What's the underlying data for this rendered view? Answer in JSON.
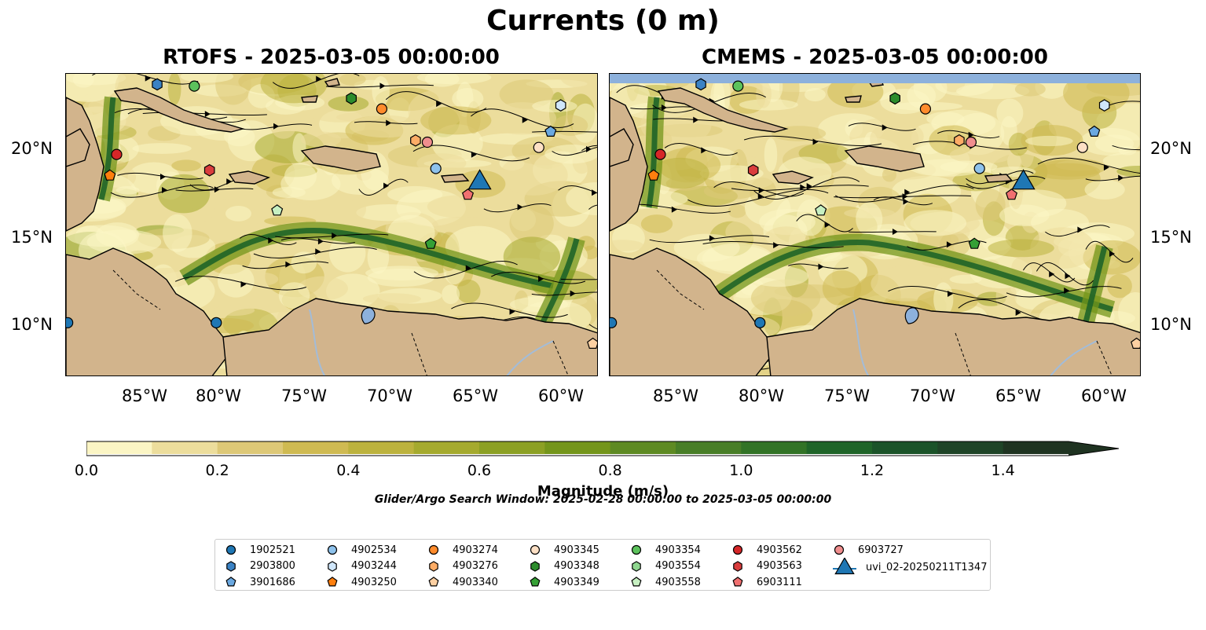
{
  "figure": {
    "title": "Currents (0 m)",
    "search_window": "Glider/Argo Search Window: 2025-02-28 00:00:00 to 2025-03-05 00:00:00"
  },
  "panels": [
    {
      "title": "RTOFS - 2025-03-05 00:00:00",
      "model": "RTOFS"
    },
    {
      "title": "CMEMS - 2025-03-05 00:00:00",
      "model": "CMEMS"
    }
  ],
  "axes": {
    "lon_ticks": [
      "85°W",
      "80°W",
      "75°W",
      "70°W",
      "65°W",
      "60°W"
    ],
    "lat_ticks": [
      "20°N",
      "15°N",
      "10°N"
    ],
    "lon_range": [
      -89.5,
      -58.0
    ],
    "lat_range": [
      7.0,
      24.3
    ]
  },
  "colorbar": {
    "label": "Magnitude (m/s)",
    "ticks": [
      "0.0",
      "0.2",
      "0.4",
      "0.6",
      "0.8",
      "1.0",
      "1.2",
      "1.4"
    ],
    "range": [
      0.0,
      1.5
    ],
    "extend": "max",
    "colors": [
      "#fbf5c4",
      "#ecdd9c",
      "#ddc877",
      "#cfba52",
      "#bcb23e",
      "#a5aa2e",
      "#8ca024",
      "#74951b",
      "#5e8a23",
      "#487e27",
      "#327326",
      "#1f6428",
      "#1b5329",
      "#1f4427",
      "#1f3321"
    ]
  },
  "colors": {
    "land": "#d2b48c",
    "lakes": "#8db1dc",
    "rivers": "#a3bcd8",
    "nodata_band": "#8db1dc"
  },
  "legend": {
    "columns": [
      [
        {
          "label": "1902521",
          "marker": "circle",
          "color": "#1f77b4"
        },
        {
          "label": "2903800",
          "marker": "hexagon",
          "color": "#3b82c4"
        },
        {
          "label": "3901686",
          "marker": "pentagon",
          "color": "#6aa8e0"
        }
      ],
      [
        {
          "label": "4902534",
          "marker": "circle",
          "color": "#8ec2ec"
        },
        {
          "label": "4903244",
          "marker": "hexagon",
          "color": "#cfe6fa"
        },
        {
          "label": "4903250",
          "marker": "pentagon",
          "color": "#ff7f0e"
        }
      ],
      [
        {
          "label": "4903274",
          "marker": "circle",
          "color": "#ff8b2c"
        },
        {
          "label": "4903276",
          "marker": "hexagon",
          "color": "#fdac66"
        },
        {
          "label": "4903340",
          "marker": "pentagon",
          "color": "#fdd0a2"
        }
      ],
      [
        {
          "label": "4903345",
          "marker": "circle",
          "color": "#fde0c5"
        },
        {
          "label": "4903348",
          "marker": "hexagon",
          "color": "#2c8c2c"
        },
        {
          "label": "4903349",
          "marker": "pentagon",
          "color": "#35a035"
        }
      ],
      [
        {
          "label": "4903354",
          "marker": "circle",
          "color": "#5cc25c"
        },
        {
          "label": "4903554",
          "marker": "hexagon",
          "color": "#8fd68f"
        },
        {
          "label": "4903558",
          "marker": "pentagon",
          "color": "#c7f0c2"
        }
      ],
      [
        {
          "label": "4903562",
          "marker": "circle",
          "color": "#d62728"
        },
        {
          "label": "4903563",
          "marker": "hexagon",
          "color": "#d93d3d"
        },
        {
          "label": "6903111",
          "marker": "pentagon",
          "color": "#f07070"
        }
      ],
      [
        {
          "label": "6903727",
          "marker": "circle",
          "color": "#f08e8e"
        },
        {
          "label": "uvi_02-20250211T1347",
          "marker": "triangle",
          "color": "#1f77b4"
        }
      ]
    ]
  },
  "floats": [
    {
      "id": "1902521",
      "lon": -89.4,
      "lat": 10.1
    },
    {
      "id": "1902521",
      "lon": -80.6,
      "lat": 10.1
    },
    {
      "id": "2903800",
      "lon": -84.1,
      "lat": 23.7
    },
    {
      "id": "3901686",
      "lon": -60.8,
      "lat": 21.0
    },
    {
      "id": "4902534",
      "lon": -67.6,
      "lat": 18.9
    },
    {
      "id": "4903244",
      "lon": -60.2,
      "lat": 22.5
    },
    {
      "id": "4903250",
      "lon": -86.9,
      "lat": 18.5
    },
    {
      "id": "4903274",
      "lon": -70.8,
      "lat": 22.3
    },
    {
      "id": "4903276",
      "lon": -68.8,
      "lat": 20.5
    },
    {
      "id": "4903340",
      "lon": -58.3,
      "lat": 8.9
    },
    {
      "id": "4903345",
      "lon": -61.5,
      "lat": 20.1
    },
    {
      "id": "4903348",
      "lon": -72.6,
      "lat": 22.9
    },
    {
      "id": "4903349",
      "lon": -67.9,
      "lat": 14.6
    },
    {
      "id": "4903354",
      "lon": -81.9,
      "lat": 23.6
    },
    {
      "id": "4903558",
      "lon": -77.0,
      "lat": 16.5
    },
    {
      "id": "4903562",
      "lon": -86.5,
      "lat": 19.7
    },
    {
      "id": "4903563",
      "lon": -81.0,
      "lat": 18.8
    },
    {
      "id": "6903111",
      "lon": -65.7,
      "lat": 17.4
    },
    {
      "id": "6903727",
      "lon": -68.1,
      "lat": 20.4
    }
  ],
  "glider": {
    "id": "uvi_02-20250211T1347",
    "lon": -65.0,
    "lat": 18.1
  }
}
